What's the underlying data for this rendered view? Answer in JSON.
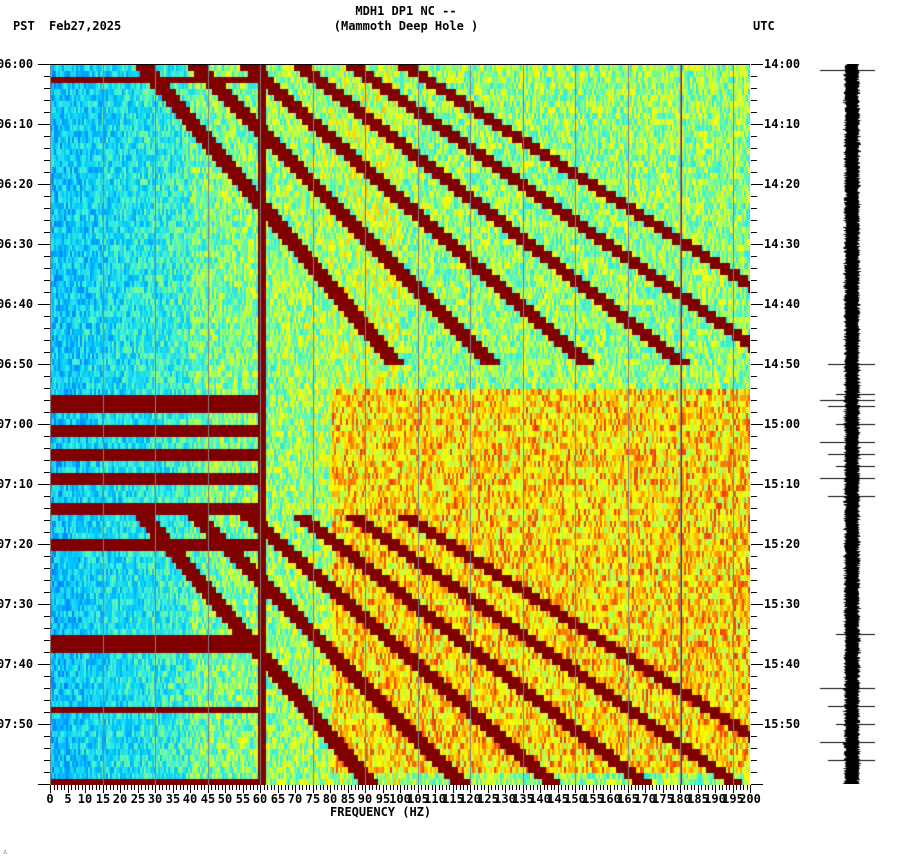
{
  "header": {
    "station_line": "MDH1 DP1 NC --",
    "station_name": "(Mammoth Deep Hole )",
    "left_timezone": "PST",
    "date": "Feb27,2025",
    "right_timezone": "UTC"
  },
  "footer": {
    "mark": "∴"
  },
  "colors": {
    "dark_red": "#800000",
    "red": "#e8201a",
    "orange": "#ff8c00",
    "yellow": "#ffff00",
    "green_yellow": "#9cff66",
    "cyan": "#00e5ff",
    "blue": "#1a7dff",
    "gridline": "#808080",
    "seismogram": "#000000"
  },
  "chart_data": {
    "type": "heatmap",
    "title": "MDH1 DP1 NC -- (Mammoth Deep Hole )",
    "subtitle": "Feb27,2025",
    "xlabel": "FREQUENCY (HZ)",
    "ylabel_left": "PST",
    "ylabel_right": "UTC",
    "xlim": [
      0,
      200
    ],
    "x_ticks": [
      "0",
      "5",
      "10",
      "15",
      "20",
      "25",
      "30",
      "35",
      "40",
      "45",
      "50",
      "55",
      "60",
      "65",
      "70",
      "75",
      "80",
      "85",
      "90",
      "95",
      "100",
      "105",
      "110",
      "115",
      "120",
      "125",
      "130",
      "135",
      "140",
      "145",
      "150",
      "155",
      "160",
      "165",
      "170",
      "175",
      "180",
      "185",
      "190",
      "195",
      "200"
    ],
    "y_ticks_left": [
      "06:00",
      "06:10",
      "06:20",
      "06:30",
      "06:40",
      "06:50",
      "07:00",
      "07:10",
      "07:20",
      "07:30",
      "07:40",
      "07:50"
    ],
    "y_ticks_right": [
      "14:00",
      "14:10",
      "14:20",
      "14:30",
      "14:40",
      "14:50",
      "15:00",
      "15:10",
      "15:20",
      "15:30",
      "15:40",
      "15:50"
    ],
    "time_range_pst": [
      "06:00",
      "08:00"
    ],
    "time_range_utc": [
      "14:00",
      "16:00"
    ],
    "minor_tick_interval_min": 2,
    "colormap": "jet (blue = low power, dark red = high power)",
    "features": [
      {
        "name": "persistent line",
        "freq_hz": 60,
        "color": "dark red"
      },
      {
        "name": "persistent line",
        "freq_hz": 180,
        "color": "dark red (faint)"
      },
      {
        "name": "curved gliding harmonics",
        "time_pst": "06:00-06:50",
        "freq_range_hz": [
          20,
          130
        ]
      },
      {
        "name": "broadband bursts",
        "time_pst": "06:54-07:12",
        "freq_range_hz": [
          0,
          60
        ]
      },
      {
        "name": "curved gliding harmonics",
        "time_pst": "07:15-08:00",
        "freq_range_hz": [
          20,
          130
        ]
      },
      {
        "name": "elevated high-frequency energy",
        "time_pst": "06:54-07:55",
        "freq_range_hz": [
          100,
          200
        ]
      }
    ],
    "grid": true,
    "legend": null
  },
  "seismogram": {
    "events_pst": [
      "06:01",
      "06:50",
      "06:55",
      "06:56",
      "06:57",
      "07:00",
      "07:03",
      "07:05",
      "07:07",
      "07:09",
      "07:12",
      "07:35",
      "07:44",
      "07:47",
      "07:50",
      "07:53",
      "07:56"
    ]
  }
}
